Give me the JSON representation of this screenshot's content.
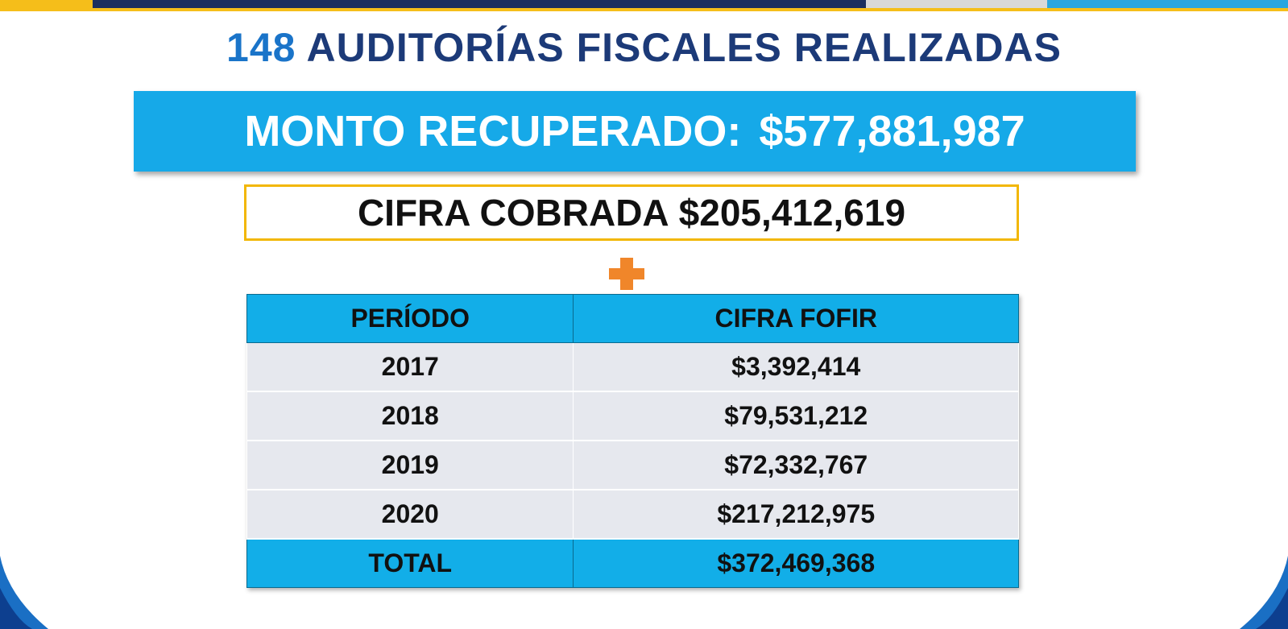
{
  "header": {
    "number": "148",
    "title": "AUDITORÍAS FISCALES REALIZADAS"
  },
  "recovered": {
    "label": "MONTO RECUPERADO:",
    "value": "$577,881,987"
  },
  "collected": {
    "label": "CIFRA COBRADA",
    "value": "$205,412,619"
  },
  "table": {
    "columns": [
      "PERÍODO",
      "CIFRA FOFIR"
    ],
    "rows": [
      [
        "2017",
        "$3,392,414"
      ],
      [
        "2018",
        "$79,531,212"
      ],
      [
        "2019",
        "$72,332,767"
      ],
      [
        "2020",
        "$217,212,975"
      ]
    ],
    "total": [
      "TOTAL",
      "$372,469,368"
    ]
  }
}
